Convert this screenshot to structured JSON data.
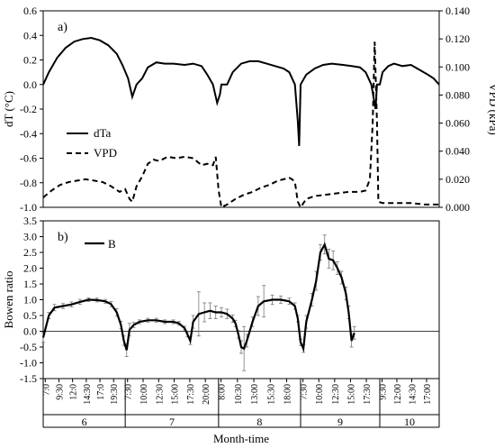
{
  "chart_data": [
    {
      "type": "line",
      "panel_label": "a)",
      "ylabel": "dT (°C)",
      "y2label": "VPD (kPa)",
      "ylim": [
        -1.0,
        0.6
      ],
      "yticks": [
        "0.6",
        "0.4",
        "0.2",
        "0.0",
        "-0.2",
        "-0.4",
        "-0.6",
        "-0.8",
        "-1.0"
      ],
      "y2lim": [
        0.0,
        0.14
      ],
      "y2ticks": [
        "0.140",
        "0.120",
        "0.100",
        "0.080",
        "0.060",
        "0.040",
        "0.020",
        "0.000"
      ],
      "legend": {
        "position": "left-middle",
        "entries": [
          "dTa",
          "VPD"
        ]
      },
      "series": [
        {
          "name": "dTa",
          "axis": "left",
          "style": "solid",
          "points": [
            [
              0,
              0.0
            ],
            [
              2,
              0.1
            ],
            [
              5,
              0.22
            ],
            [
              8,
              0.3
            ],
            [
              11,
              0.35
            ],
            [
              14,
              0.37
            ],
            [
              17,
              0.38
            ],
            [
              20,
              0.36
            ],
            [
              23,
              0.32
            ],
            [
              26,
              0.25
            ],
            [
              28,
              0.16
            ],
            [
              30,
              0.05
            ],
            [
              31.5,
              -0.1
            ],
            [
              33,
              0.0
            ],
            [
              35,
              0.05
            ],
            [
              37,
              0.14
            ],
            [
              40,
              0.18
            ],
            [
              43,
              0.17
            ],
            [
              46,
              0.17
            ],
            [
              50,
              0.16
            ],
            [
              53,
              0.17
            ],
            [
              56,
              0.15
            ],
            [
              58,
              0.08
            ],
            [
              60,
              0.0
            ],
            [
              61.5,
              -0.15
            ],
            [
              62.5,
              -0.08
            ],
            [
              63,
              0.0
            ],
            [
              65,
              0.0
            ],
            [
              67,
              0.1
            ],
            [
              70,
              0.17
            ],
            [
              73,
              0.19
            ],
            [
              76,
              0.19
            ],
            [
              79,
              0.17
            ],
            [
              82,
              0.15
            ],
            [
              85,
              0.13
            ],
            [
              87,
              0.1
            ],
            [
              89,
              0.0
            ],
            [
              90,
              -0.3
            ],
            [
              90.5,
              -0.5
            ],
            [
              91,
              0.0
            ],
            [
              93,
              0.08
            ],
            [
              96,
              0.13
            ],
            [
              99,
              0.16
            ],
            [
              102,
              0.17
            ],
            [
              106,
              0.16
            ],
            [
              109,
              0.15
            ],
            [
              112,
              0.14
            ],
            [
              114,
              0.1
            ],
            [
              116,
              0.0
            ],
            [
              117.5,
              -0.2
            ],
            [
              118,
              0.0
            ],
            [
              119,
              0.0
            ],
            [
              120,
              0.1
            ],
            [
              122,
              0.15
            ],
            [
              124,
              0.17
            ],
            [
              127,
              0.15
            ],
            [
              130,
              0.16
            ],
            [
              133,
              0.12
            ],
            [
              136,
              0.08
            ],
            [
              138,
              0.05
            ],
            [
              140,
              0.0
            ]
          ]
        },
        {
          "name": "VPD",
          "axis": "right",
          "style": "dashed",
          "points": [
            [
              0,
              0.007
            ],
            [
              3,
              0.012
            ],
            [
              6,
              0.016
            ],
            [
              9,
              0.018
            ],
            [
              12,
              0.019
            ],
            [
              15,
              0.02
            ],
            [
              18,
              0.019
            ],
            [
              21,
              0.018
            ],
            [
              24,
              0.015
            ],
            [
              27,
              0.011
            ],
            [
              29,
              0.013
            ],
            [
              30.5,
              0.006
            ],
            [
              31.5,
              0.004
            ],
            [
              33,
              0.015
            ],
            [
              35,
              0.022
            ],
            [
              37,
              0.031
            ],
            [
              39,
              0.034
            ],
            [
              41,
              0.033
            ],
            [
              44,
              0.036
            ],
            [
              47,
              0.035
            ],
            [
              50,
              0.036
            ],
            [
              53,
              0.035
            ],
            [
              56,
              0.03
            ],
            [
              58,
              0.031
            ],
            [
              60,
              0.03
            ],
            [
              61,
              0.036
            ],
            [
              62,
              0.012
            ],
            [
              63,
              0.0
            ],
            [
              65,
              0.002
            ],
            [
              68,
              0.006
            ],
            [
              71,
              0.009
            ],
            [
              74,
              0.011
            ],
            [
              77,
              0.014
            ],
            [
              80,
              0.016
            ],
            [
              83,
              0.019
            ],
            [
              85,
              0.02
            ],
            [
              87,
              0.021
            ],
            [
              88,
              0.02
            ],
            [
              89,
              0.018
            ],
            [
              90,
              0.004
            ],
            [
              91,
              0.0
            ],
            [
              93,
              0.006
            ],
            [
              96,
              0.008
            ],
            [
              100,
              0.009
            ],
            [
              104,
              0.01
            ],
            [
              108,
              0.011
            ],
            [
              112,
              0.011
            ],
            [
              114,
              0.012
            ],
            [
              115.5,
              0.02
            ],
            [
              116.5,
              0.06
            ],
            [
              117.2,
              0.118
            ],
            [
              118,
              0.06
            ],
            [
              118.5,
              0.004
            ],
            [
              120,
              0.003
            ],
            [
              125,
              0.003
            ],
            [
              130,
              0.003
            ],
            [
              135,
              0.002
            ],
            [
              140,
              0.002
            ]
          ]
        }
      ]
    },
    {
      "type": "line",
      "panel_label": "b)",
      "ylabel": "Bowen ratio",
      "xlabel": "Month-time",
      "ylim": [
        -1.5,
        3.5
      ],
      "yticks": [
        "3.5",
        "3.0",
        "2.5",
        "2.0",
        "1.5",
        "1.0",
        "0.5",
        "0.0",
        "-0.5",
        "-1.0",
        "-1.5"
      ],
      "legend": {
        "position": "top-left",
        "entries": [
          "B"
        ]
      },
      "x_tick_labels": [
        [
          "7:0",
          "9:30",
          "12:0",
          "14:30",
          "17:0",
          "19:30"
        ],
        [
          "7:30",
          "10:00",
          "12:30",
          "15:00",
          "17:30",
          "20:00"
        ],
        [
          "8:00",
          "10:30",
          "13:00",
          "15:30",
          "18:00"
        ],
        [
          "7:30",
          "10:00",
          "12:30",
          "15:00",
          "17:30"
        ],
        [
          "9:30",
          "12:00",
          "14:30",
          "17:00"
        ]
      ],
      "months": [
        "6",
        "7",
        "8",
        "9",
        "10"
      ],
      "series": [
        {
          "name": "B",
          "points": [
            [
              0,
              -0.2
            ],
            [
              2,
              0.5
            ],
            [
              4,
              0.75
            ],
            [
              7,
              0.8
            ],
            [
              10,
              0.85
            ],
            [
              13,
              0.93
            ],
            [
              16,
              1.0
            ],
            [
              19,
              0.99
            ],
            [
              22,
              0.95
            ],
            [
              24,
              0.86
            ],
            [
              26,
              0.6
            ],
            [
              27.5,
              0.2
            ],
            [
              28.5,
              -0.3
            ],
            [
              29.5,
              -0.6
            ],
            [
              30.5,
              0.05
            ],
            [
              32,
              0.2
            ],
            [
              34,
              0.3
            ],
            [
              37,
              0.35
            ],
            [
              40,
              0.35
            ],
            [
              43,
              0.3
            ],
            [
              46,
              0.3
            ],
            [
              48,
              0.25
            ],
            [
              50,
              0.1
            ],
            [
              51,
              -0.1
            ],
            [
              52,
              -0.3
            ],
            [
              53,
              0.3
            ],
            [
              55,
              0.55
            ],
            [
              57,
              0.6
            ],
            [
              59,
              0.65
            ],
            [
              61,
              0.6
            ],
            [
              63,
              0.6
            ],
            [
              65,
              0.55
            ],
            [
              67,
              0.4
            ],
            [
              68,
              0.25
            ],
            [
              69,
              -0.1
            ],
            [
              70,
              -0.5
            ],
            [
              71,
              -0.55
            ],
            [
              72,
              -0.3
            ],
            [
              74,
              0.3
            ],
            [
              76,
              0.8
            ],
            [
              78,
              0.95
            ],
            [
              81,
              1.0
            ],
            [
              84,
              1.0
            ],
            [
              87,
              0.95
            ],
            [
              89,
              0.8
            ],
            [
              90,
              0.4
            ],
            [
              91,
              -0.35
            ],
            [
              92,
              -0.55
            ],
            [
              93,
              0.3
            ],
            [
              95,
              1.0
            ],
            [
              96.5,
              1.6
            ],
            [
              98,
              2.5
            ],
            [
              99.5,
              2.75
            ],
            [
              101,
              2.3
            ],
            [
              102.5,
              2.25
            ],
            [
              104,
              2.0
            ],
            [
              105.5,
              1.7
            ],
            [
              107,
              1.2
            ],
            [
              108,
              0.6
            ],
            [
              109,
              -0.3
            ],
            [
              110,
              -0.05
            ]
          ],
          "error": [
            0.15,
            0.1,
            0.1,
            0.08,
            0.08,
            0.08,
            0.06,
            0.06,
            0.06,
            0.08,
            0.12,
            0.12,
            0.15,
            0.2,
            0.2,
            0.08,
            0.06,
            0.06,
            0.06,
            0.06,
            0.06,
            0.06,
            0.06,
            0.08,
            0.12,
            0.2,
            0.7,
            0.3,
            0.25,
            0.2,
            0.15,
            0.15,
            0.12,
            0.1,
            0.12,
            0.2,
            0.7,
            0.2,
            0.15,
            0.3,
            0.5,
            0.15,
            0.12,
            0.1,
            0.1,
            0.1,
            0.1,
            0.12,
            0.2,
            0.2,
            0.3,
            0.25,
            0.3,
            0.3,
            0.3,
            0.2,
            0.2,
            0.2,
            0.2,
            0.2,
            0.2
          ]
        }
      ]
    }
  ]
}
